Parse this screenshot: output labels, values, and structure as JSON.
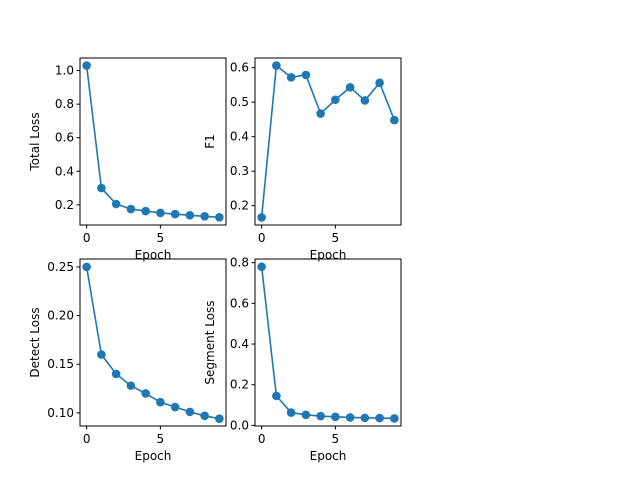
{
  "chart_data": [
    {
      "type": "line",
      "xlabel": "Epoch",
      "ylabel": "Total Loss",
      "x": [
        0,
        1,
        2,
        3,
        4,
        5,
        6,
        7,
        8,
        9
      ],
      "values": [
        1.03,
        0.3,
        0.205,
        0.175,
        0.163,
        0.152,
        0.145,
        0.138,
        0.132,
        0.126
      ],
      "xlim": [
        -0.45,
        9.45
      ],
      "ylim": [
        0.08,
        1.075
      ],
      "xticks": [
        0,
        5
      ],
      "yticks": [
        0.2,
        0.4,
        0.6,
        0.8,
        1.0
      ],
      "ytick_labels": [
        "0.2",
        "0.4",
        "0.6",
        "0.8",
        "1.0"
      ],
      "color": "#1f77b4",
      "marker": "circle",
      "grid": false
    },
    {
      "type": "line",
      "xlabel": "Epoch",
      "ylabel": "F1",
      "x": [
        0,
        1,
        2,
        3,
        4,
        5,
        6,
        7,
        8,
        9
      ],
      "values": [
        0.166,
        0.606,
        0.572,
        0.579,
        0.467,
        0.507,
        0.543,
        0.505,
        0.556,
        0.448
      ],
      "xlim": [
        -0.45,
        9.45
      ],
      "ylim": [
        0.144,
        0.628
      ],
      "xticks": [
        0,
        5
      ],
      "yticks": [
        0.2,
        0.3,
        0.4,
        0.5,
        0.6
      ],
      "ytick_labels": [
        "0.2",
        "0.3",
        "0.4",
        "0.5",
        "0.6"
      ],
      "color": "#1f77b4",
      "marker": "circle",
      "grid": false
    },
    {
      "type": "line",
      "xlabel": "Epoch",
      "ylabel": "Detect Loss",
      "x": [
        0,
        1,
        2,
        3,
        4,
        5,
        6,
        7,
        8,
        9
      ],
      "values": [
        0.25,
        0.16,
        0.14,
        0.128,
        0.12,
        0.111,
        0.106,
        0.101,
        0.097,
        0.094
      ],
      "xlim": [
        -0.45,
        9.45
      ],
      "ylim": [
        0.0865,
        0.2582
      ],
      "xticks": [
        0,
        5
      ],
      "yticks": [
        0.1,
        0.15,
        0.2,
        0.25
      ],
      "ytick_labels": [
        "0.10",
        "0.15",
        "0.20",
        "0.25"
      ],
      "color": "#1f77b4",
      "marker": "circle",
      "grid": false
    },
    {
      "type": "line",
      "xlabel": "Epoch",
      "ylabel": "Segment Loss",
      "x": [
        0,
        1,
        2,
        3,
        4,
        5,
        6,
        7,
        8,
        9
      ],
      "values": [
        0.78,
        0.145,
        0.063,
        0.052,
        0.046,
        0.042,
        0.039,
        0.037,
        0.036,
        0.034
      ],
      "xlim": [
        -0.45,
        9.45
      ],
      "ylim": [
        -0.003,
        0.818
      ],
      "xticks": [
        0,
        5
      ],
      "yticks": [
        0.0,
        0.2,
        0.4,
        0.6,
        0.8
      ],
      "ytick_labels": [
        "0.0",
        "0.2",
        "0.4",
        "0.6",
        "0.8"
      ],
      "color": "#1f77b4",
      "marker": "circle",
      "grid": false
    }
  ]
}
